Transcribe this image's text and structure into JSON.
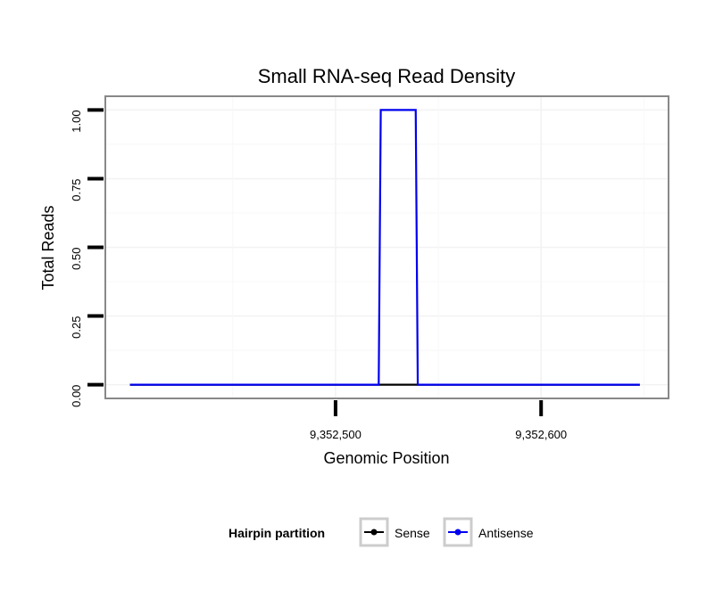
{
  "chart_data": {
    "type": "line",
    "title": "Small RNA-seq Read Density",
    "xlabel": "Genomic Position",
    "ylabel": "Total Reads",
    "xlim": [
      9352388,
      9352662
    ],
    "ylim": [
      -0.05,
      1.05
    ],
    "x_ticks": [
      9352500,
      9352600
    ],
    "x_tick_labels": [
      "9,352,500",
      "9,352,600"
    ],
    "y_ticks": [
      0,
      0.25,
      0.5,
      0.75,
      1
    ],
    "y_tick_labels": [
      "0.00",
      "0.25",
      "0.50",
      "0.75",
      "1.00"
    ],
    "grid": true,
    "legend": {
      "title": "Hairpin partition",
      "position": "bottom",
      "entries": [
        "Sense",
        "Antisense"
      ]
    },
    "series": [
      {
        "name": "Sense",
        "color": "#000000",
        "x": [
          9352400,
          9352648
        ],
        "y": [
          0,
          0
        ]
      },
      {
        "name": "Antisense",
        "color": "#0000ee",
        "x": [
          9352400,
          9352521,
          9352522,
          9352539,
          9352540,
          9352648
        ],
        "y": [
          0,
          0,
          1,
          1,
          0,
          0
        ]
      }
    ]
  }
}
